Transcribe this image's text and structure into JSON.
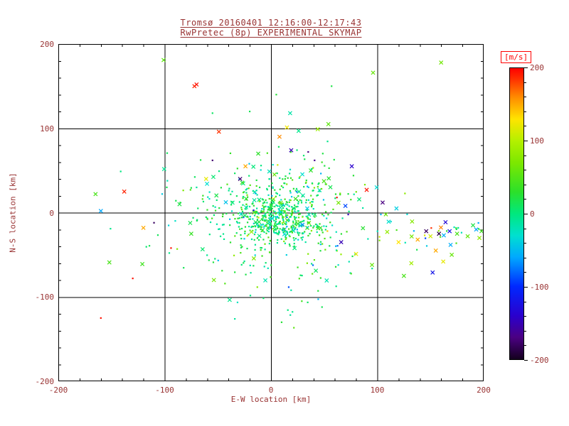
{
  "title": {
    "line1": "Tromsø 20160401 12:16:00-12:17:43",
    "line2": "RwPretec (8p) EXPERIMENTAL SKYMAP"
  },
  "axes": {
    "x": {
      "label": "E-W location [km]",
      "min": -200,
      "max": 200,
      "ticks": [
        -200,
        -100,
        0,
        100,
        200
      ]
    },
    "y": {
      "label": "N-S location [km]",
      "min": -200,
      "max": 200,
      "ticks": [
        -200,
        -100,
        0,
        100,
        200
      ]
    },
    "grid": [
      -100,
      0,
      100
    ]
  },
  "colorbar": {
    "label": "[m/s]",
    "min": -200,
    "max": 200,
    "ticks": [
      200,
      100,
      0,
      -100,
      -200
    ],
    "stops": [
      [
        -200,
        "#14001e"
      ],
      [
        -170,
        "#4b0082"
      ],
      [
        -140,
        "#2a00cd"
      ],
      [
        -100,
        "#0028ff"
      ],
      [
        -60,
        "#00a8ff"
      ],
      [
        -30,
        "#00e0d0"
      ],
      [
        0,
        "#00e87e"
      ],
      [
        30,
        "#2ce02a"
      ],
      [
        70,
        "#7ce800"
      ],
      [
        100,
        "#b4f000"
      ],
      [
        130,
        "#ffe400"
      ],
      [
        160,
        "#ff8c00"
      ],
      [
        185,
        "#ff3000"
      ],
      [
        200,
        "#ff0000"
      ]
    ]
  },
  "colors": {
    "text": "#993333",
    "frame": "#000000",
    "unit_label": "#ff0000",
    "background": "#ffffff"
  },
  "chart_data": {
    "type": "scatter",
    "title": "Tromsø 20160401 12:16:00-12:17:43 / RwPretec (8p) EXPERIMENTAL SKYMAP",
    "xlabel": "E-W location [km]",
    "ylabel": "N-S location [km]",
    "xlim": [
      -200,
      200
    ],
    "ylim": [
      -200,
      200
    ],
    "value_units": "m/s",
    "value_range": [
      -200,
      200
    ],
    "legend_position": "right-colorbar",
    "grid": true,
    "seed": 1234,
    "outliers": [
      [
        -70,
        152,
        195,
        "x"
      ],
      [
        -72,
        150,
        190,
        "x"
      ],
      [
        -49,
        96,
        185,
        "x"
      ],
      [
        -101,
        181,
        55,
        "x"
      ],
      [
        96,
        166,
        60,
        "x"
      ],
      [
        160,
        178,
        65,
        "x"
      ],
      [
        15,
        101,
        125,
        "x"
      ],
      [
        8,
        90,
        160,
        "x"
      ],
      [
        26,
        97,
        -5,
        "x"
      ],
      [
        18,
        118,
        -15,
        "x"
      ],
      [
        54,
        105,
        55,
        "x"
      ],
      [
        19,
        74,
        -150,
        "x"
      ],
      [
        44,
        99,
        85,
        "x"
      ],
      [
        -24,
        55,
        150,
        "x"
      ],
      [
        -61,
        40,
        120,
        "x"
      ],
      [
        -55,
        62,
        -175,
        "."
      ],
      [
        -12,
        70,
        30,
        "x"
      ],
      [
        -138,
        25,
        190,
        "x"
      ],
      [
        -160,
        2,
        -60,
        "x"
      ],
      [
        -165,
        22,
        45,
        "x"
      ],
      [
        -110,
        -12,
        -180,
        "."
      ],
      [
        -120,
        -18,
        150,
        "x"
      ],
      [
        -86,
        10,
        20,
        "x"
      ],
      [
        -98,
        30,
        15,
        "."
      ],
      [
        -152,
        -59,
        45,
        "x"
      ],
      [
        -121,
        -61,
        40,
        "x"
      ],
      [
        -130,
        -78,
        195,
        "."
      ],
      [
        -75,
        -25,
        35,
        "x"
      ],
      [
        -160,
        -125,
        195,
        "."
      ],
      [
        -94,
        -42,
        195,
        "."
      ],
      [
        76,
        55,
        -140,
        "x"
      ],
      [
        90,
        27,
        195,
        "x"
      ],
      [
        105,
        12,
        -170,
        "x"
      ],
      [
        80,
        -49,
        120,
        "x"
      ],
      [
        95,
        -62,
        60,
        "x"
      ],
      [
        66,
        -35,
        -150,
        "x"
      ],
      [
        120,
        -35,
        130,
        "x"
      ],
      [
        138,
        -32,
        150,
        "x"
      ],
      [
        146,
        -22,
        -180,
        "x"
      ],
      [
        158,
        -25,
        -190,
        "x"
      ],
      [
        168,
        -22,
        -120,
        "x"
      ],
      [
        175,
        -25,
        45,
        "x"
      ],
      [
        185,
        -28,
        60,
        "x"
      ],
      [
        193,
        -20,
        -60,
        "x"
      ],
      [
        198,
        -22,
        40,
        "x"
      ],
      [
        190,
        -15,
        20,
        "x"
      ],
      [
        196,
        -30,
        80,
        "x"
      ],
      [
        150,
        -28,
        110,
        "x"
      ],
      [
        155,
        -45,
        150,
        "x"
      ],
      [
        152,
        -71,
        -120,
        "x"
      ],
      [
        162,
        -58,
        120,
        "x"
      ],
      [
        170,
        -50,
        60,
        "x"
      ],
      [
        132,
        -60,
        90,
        "x"
      ],
      [
        125,
        -75,
        45,
        "x"
      ],
      [
        108,
        -2,
        60,
        "x"
      ],
      [
        118,
        5,
        -40,
        "x"
      ],
      [
        62,
        18,
        195,
        "."
      ],
      [
        70,
        8,
        -90,
        "x"
      ],
      [
        29,
        -105,
        40,
        "."
      ],
      [
        -34,
        -126,
        -10,
        "."
      ],
      [
        10,
        -130,
        25,
        "."
      ],
      [
        48,
        -112,
        15,
        "."
      ],
      [
        35,
        72,
        -170,
        "."
      ],
      [
        41,
        62,
        -165,
        "."
      ],
      [
        -29,
        40,
        -175,
        "x"
      ],
      [
        57,
        150,
        20,
        "."
      ],
      [
        -20,
        120,
        15,
        "."
      ],
      [
        5,
        140,
        25,
        "."
      ],
      [
        -55,
        118,
        10,
        "."
      ]
    ],
    "clusters": [
      {
        "n": 420,
        "cx": 5,
        "cy": -6,
        "sx": 20,
        "sy": 16,
        "vMean": 12,
        "vSpread": 30,
        "xFrac": 0.08
      },
      {
        "n": 200,
        "cx": 2,
        "cy": -4,
        "sx": 48,
        "sy": 34,
        "vMean": 8,
        "vSpread": 40,
        "xFrac": 0.12
      },
      {
        "n": 70,
        "cx": 18,
        "cy": 32,
        "sx": 32,
        "sy": 24,
        "vMean": 18,
        "vSpread": 35,
        "xFrac": 0.1
      },
      {
        "n": 45,
        "cx": -55,
        "cy": 8,
        "sx": 40,
        "sy": 32,
        "vMean": 10,
        "vSpread": 22,
        "xFrac": 0.06
      },
      {
        "n": 40,
        "cx": 18,
        "cy": -72,
        "sx": 42,
        "sy": 24,
        "vMean": 14,
        "vSpread": 24,
        "xFrac": 0.06
      },
      {
        "n": 28,
        "cx": 160,
        "cy": -26,
        "sx": 22,
        "sy": 9,
        "vMean": 30,
        "vSpread": 85,
        "xFrac": 0.5
      },
      {
        "n": 26,
        "cx": 60,
        "cy": -15,
        "sx": 30,
        "sy": 28,
        "vMean": 20,
        "vSpread": 60,
        "xFrac": 0.3
      }
    ]
  }
}
